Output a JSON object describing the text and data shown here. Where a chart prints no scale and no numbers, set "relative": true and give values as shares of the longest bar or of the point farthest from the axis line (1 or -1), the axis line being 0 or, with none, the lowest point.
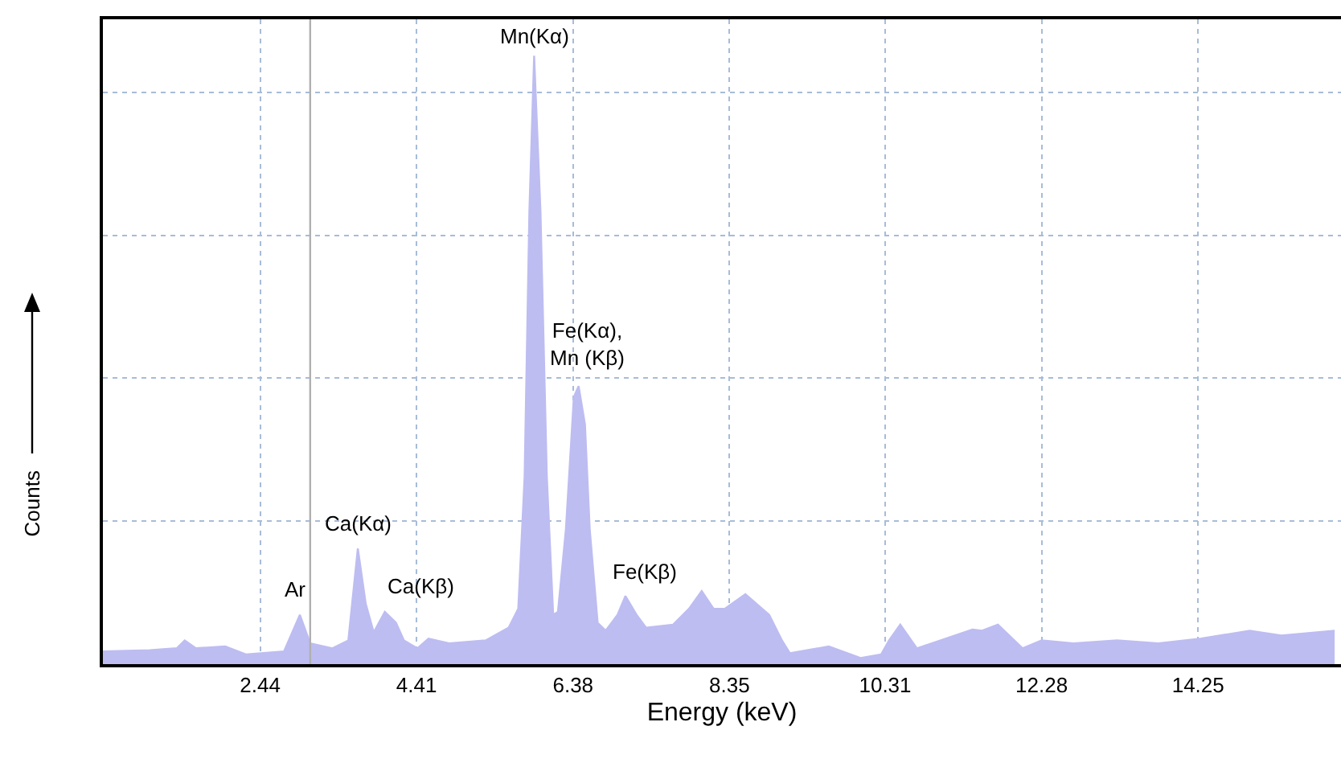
{
  "chart_data": {
    "type": "area",
    "relative": true,
    "xlabel": "Energy (keV)",
    "ylabel": "Counts",
    "xlim": [
      0.46,
      16.05
    ],
    "xticks": [
      2.44,
      4.41,
      6.38,
      8.35,
      10.31,
      12.28,
      14.25
    ],
    "grid": true,
    "series": [
      {
        "color": "#bdbdf2",
        "x": [
          0.46,
          1.05,
          1.39,
          1.49,
          1.63,
          2.0,
          2.26,
          2.74,
          2.94,
          3.07,
          3.35,
          3.55,
          3.67,
          3.77,
          3.87,
          4.01,
          4.15,
          4.25,
          4.42,
          4.56,
          4.82,
          5.28,
          5.57,
          5.69,
          5.77,
          5.83,
          5.89,
          5.97,
          6.05,
          6.13,
          6.19,
          6.29,
          6.39,
          6.45,
          6.53,
          6.59,
          6.69,
          6.79,
          6.94,
          7.04,
          7.18,
          7.3,
          7.64,
          7.84,
          8.0,
          8.15,
          8.29,
          8.55,
          8.85,
          9.01,
          9.11,
          9.6,
          10.0,
          10.26,
          10.36,
          10.5,
          10.71,
          11.01,
          11.41,
          11.53,
          11.73,
          12.04,
          12.28,
          12.68,
          13.23,
          13.75,
          14.29,
          14.9,
          15.3,
          15.97
        ],
        "values": [
          0.021,
          0.023,
          0.026,
          0.039,
          0.026,
          0.029,
          0.016,
          0.021,
          0.081,
          0.034,
          0.026,
          0.039,
          0.19,
          0.099,
          0.052,
          0.086,
          0.068,
          0.039,
          0.026,
          0.042,
          0.034,
          0.039,
          0.06,
          0.091,
          0.308,
          0.744,
          1,
          0.744,
          0.308,
          0.081,
          0.086,
          0.222,
          0.439,
          0.457,
          0.394,
          0.222,
          0.068,
          0.055,
          0.081,
          0.112,
          0.081,
          0.06,
          0.065,
          0.091,
          0.12,
          0.091,
          0.091,
          0.115,
          0.081,
          0.039,
          0.018,
          0.029,
          0.01,
          0.016,
          0.039,
          0.065,
          0.026,
          0.039,
          0.057,
          0.055,
          0.065,
          0.026,
          0.039,
          0.034,
          0.039,
          0.034,
          0.042,
          0.055,
          0.047,
          0.055
        ]
      }
    ],
    "ref_lines": [
      {
        "axis": "x",
        "value": 3.07,
        "label": null,
        "color": "#b0b0b0"
      }
    ],
    "annotations": [
      {
        "text": "Ar",
        "x": 2.94,
        "y": 0.081
      },
      {
        "text": "Ca(Kα)",
        "x": 3.67,
        "y": 0.19
      },
      {
        "text": "Ca(Kβ)",
        "x": 4.01,
        "y": 0.086
      },
      {
        "text": "Mn(Kα)",
        "x": 5.89,
        "y": 1
      },
      {
        "text": "Fe(Kα),\nMn (Kβ)",
        "x": 6.45,
        "y": 0.457
      },
      {
        "text": "Fe(Kβ)",
        "x": 7.04,
        "y": 0.112
      }
    ]
  }
}
